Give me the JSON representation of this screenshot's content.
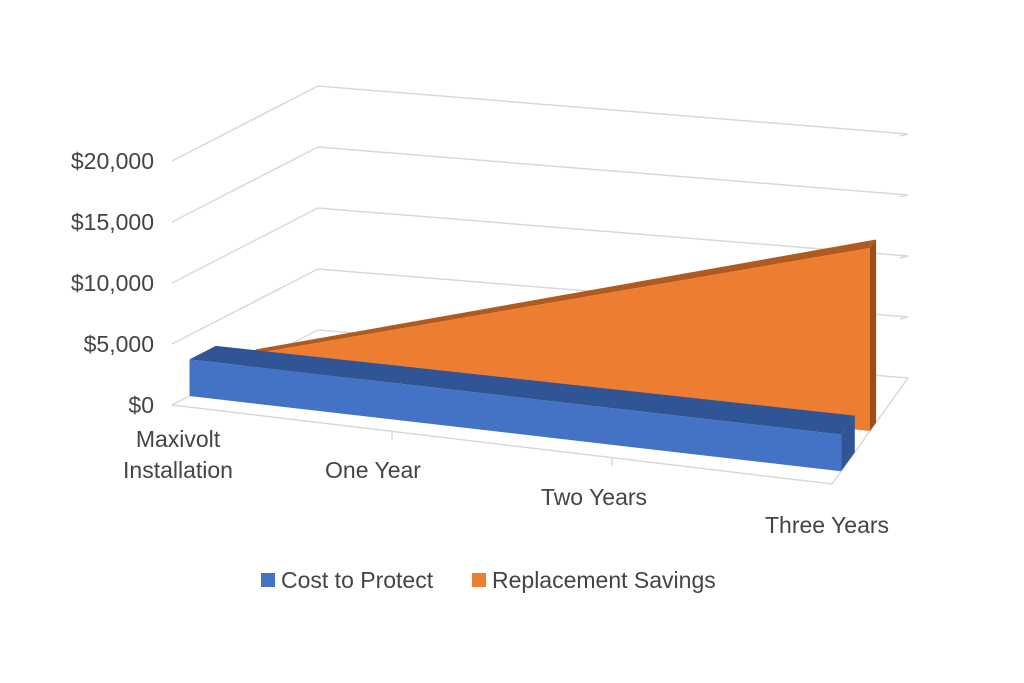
{
  "chart_data": {
    "type": "area",
    "subtype": "3d-area",
    "categories": [
      "Maxivolt Installation",
      "One Year",
      "Two Years",
      "Three Years"
    ],
    "series": [
      {
        "name": "Cost to Protect",
        "values": [
          3000,
          3000,
          3000,
          3000
        ]
      },
      {
        "name": "Replacement Savings",
        "values": [
          1000,
          5667,
          10333,
          15000
        ]
      }
    ],
    "y_ticks": [
      "$0",
      "$5,000",
      "$10,000",
      "$15,000",
      "$20,000"
    ],
    "ylim": [
      0,
      20000
    ],
    "grid": true,
    "legend": "bottom",
    "colors": {
      "series": [
        "#4472c4",
        "#ed7d31"
      ],
      "series_top": [
        "#2f5597",
        "#b05a1f"
      ],
      "series_side": [
        "#2f5597",
        "#9c4e17"
      ],
      "grid": "#d9d9d9",
      "text": "#444444"
    }
  }
}
